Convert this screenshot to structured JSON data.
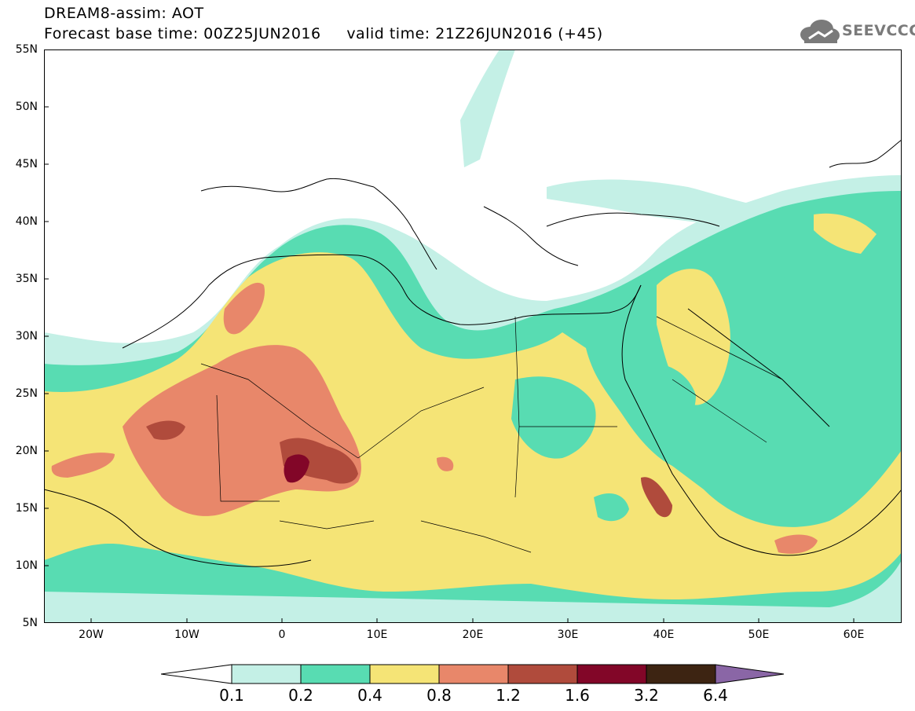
{
  "header": {
    "model_line": "DREAM8-assim: AOT",
    "base_time_label": "Forecast base time:",
    "base_time": "00Z25JUN2016",
    "valid_label": "valid time:",
    "valid_time": "21Z26JUN2016 (+45)"
  },
  "logo": {
    "text": "SEEVCCC",
    "icon": "cloud-icon"
  },
  "map": {
    "lat_labels": [
      "55N",
      "50N",
      "45N",
      "40N",
      "35N",
      "30N",
      "25N",
      "20N",
      "15N",
      "10N",
      "5N"
    ],
    "lon_labels": [
      "20W",
      "10W",
      "0",
      "10E",
      "20E",
      "30E",
      "40E",
      "50E",
      "60E"
    ],
    "lat_range": [
      5,
      55
    ],
    "lon_range": [
      -25,
      65
    ]
  },
  "legend": {
    "thresholds": [
      "0.1",
      "0.2",
      "0.4",
      "0.8",
      "1.2",
      "1.6",
      "3.2",
      "6.4"
    ],
    "colors": [
      "#ffffff",
      "#c4f0e6",
      "#58dcb2",
      "#f5e476",
      "#e8876a",
      "#b04b3c",
      "#820628",
      "#3d2412",
      "#8a66a6"
    ]
  }
}
